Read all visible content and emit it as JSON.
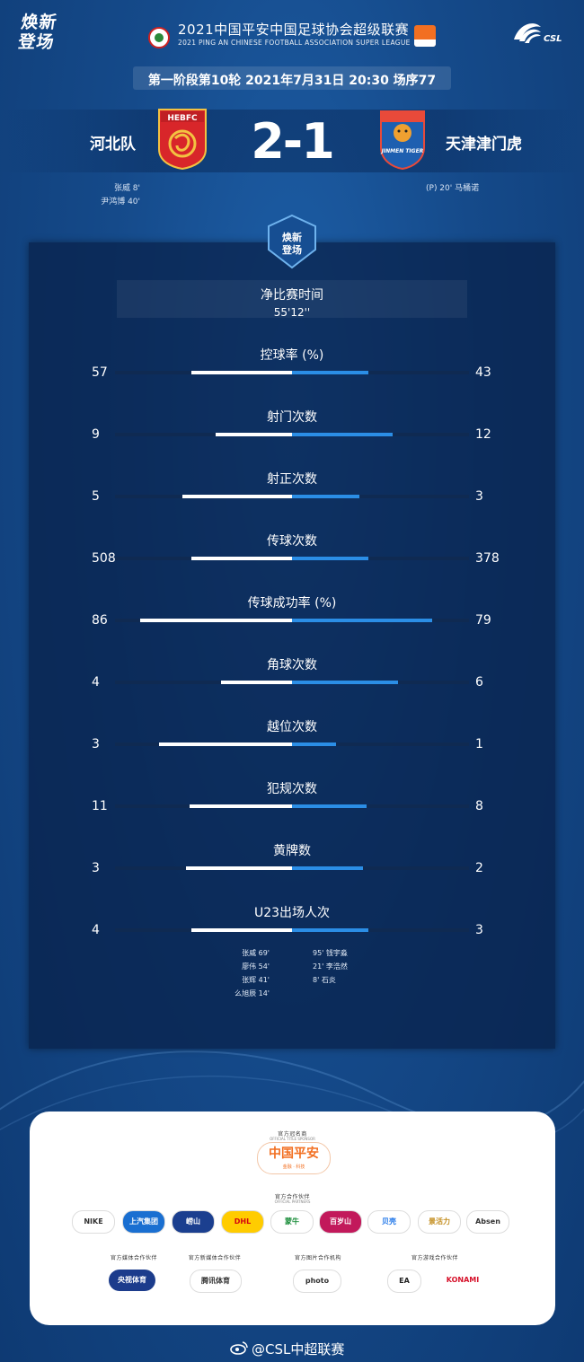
{
  "header": {
    "brand": "焕新登场",
    "league_title": "2021中国平安中国足球协会超级联赛",
    "league_subtitle": "2021 PING AN CHINESE FOOTBALL ASSOCIATION SUPER LEAGUE",
    "csl_logo_text": "CSL",
    "round_info": "第一阶段第10轮  2021年7月31日 20:30 场序77"
  },
  "match": {
    "home_team": "河北队",
    "away_team": "天津津门虎",
    "home_badge_text": "HEBFC",
    "away_badge_text": "JINMEN TIGER",
    "score": "2-1",
    "home_scorers": [
      "张威  8'",
      "尹鸿博  40'"
    ],
    "away_scorers": [
      "(P)  20'   马桶诺"
    ]
  },
  "panel": {
    "emblem_text": "焕新登场",
    "net_time_label": "净比赛时间",
    "net_time_value": "55'12''"
  },
  "stats": [
    {
      "name": "控球率 (%)",
      "home": "57",
      "away": "43",
      "home_share": 0.57,
      "away_share": 0.43
    },
    {
      "name": "射门次数",
      "home": "9",
      "away": "12",
      "home_share": 0.43,
      "away_share": 0.57
    },
    {
      "name": "射正次数",
      "home": "5",
      "away": "3",
      "home_share": 0.62,
      "away_share": 0.38
    },
    {
      "name": "传球次数",
      "home": "508",
      "away": "378",
      "home_share": 0.57,
      "away_share": 0.43
    },
    {
      "name": "传球成功率 (%)",
      "home": "86",
      "away": "79",
      "home_share": 0.86,
      "away_share": 0.79
    },
    {
      "name": "角球次数",
      "home": "4",
      "away": "6",
      "home_share": 0.4,
      "away_share": 0.6
    },
    {
      "name": "越位次数",
      "home": "3",
      "away": "1",
      "home_share": 0.75,
      "away_share": 0.25
    },
    {
      "name": "犯规次数",
      "home": "11",
      "away": "8",
      "home_share": 0.58,
      "away_share": 0.42
    },
    {
      "name": "黄牌数",
      "home": "3",
      "away": "2",
      "home_share": 0.6,
      "away_share": 0.4
    },
    {
      "name": "U23出场人次",
      "home": "4",
      "away": "3",
      "home_share": 0.57,
      "away_share": 0.43
    }
  ],
  "u23": {
    "home": [
      "张威  69'",
      "廖伟  54'",
      "张辉  41'",
      "么旭辰  14'"
    ],
    "away": [
      "95'  钱宇淼",
      "21'  李浩然",
      "8'  石炎"
    ]
  },
  "sponsors": {
    "title_sponsor_head": "官方冠名商",
    "title_sponsor_sub": "OFFICIAL TITLE SPONSOR",
    "title_sponsor": "中国平安",
    "title_sponsor_tag": "金融 · 科技",
    "partners_head": "官方合作伙伴",
    "partners_sub": "OFFICIAL PARTNERS",
    "partners": [
      "NIKE",
      "上汽集团",
      "崂山",
      "DHL",
      "蒙牛",
      "百岁山",
      "贝壳",
      "景活力",
      "Absen"
    ],
    "media_heads": [
      "官方媒体合作伙伴",
      "官方新媒体合作伙伴",
      "官方图片合作机构",
      "官方游戏合作伙伴"
    ],
    "media_logos": [
      "央视体育",
      "腾讯体育",
      "photo",
      "EA",
      "KONAMI"
    ]
  },
  "footer": {
    "weibo": "@CSL中超联赛"
  },
  "colors": {
    "home_bar": "#ffffff",
    "away_bar": "#2b8ee6",
    "background": "#154a8a",
    "brand_orange": "#f26f21"
  }
}
